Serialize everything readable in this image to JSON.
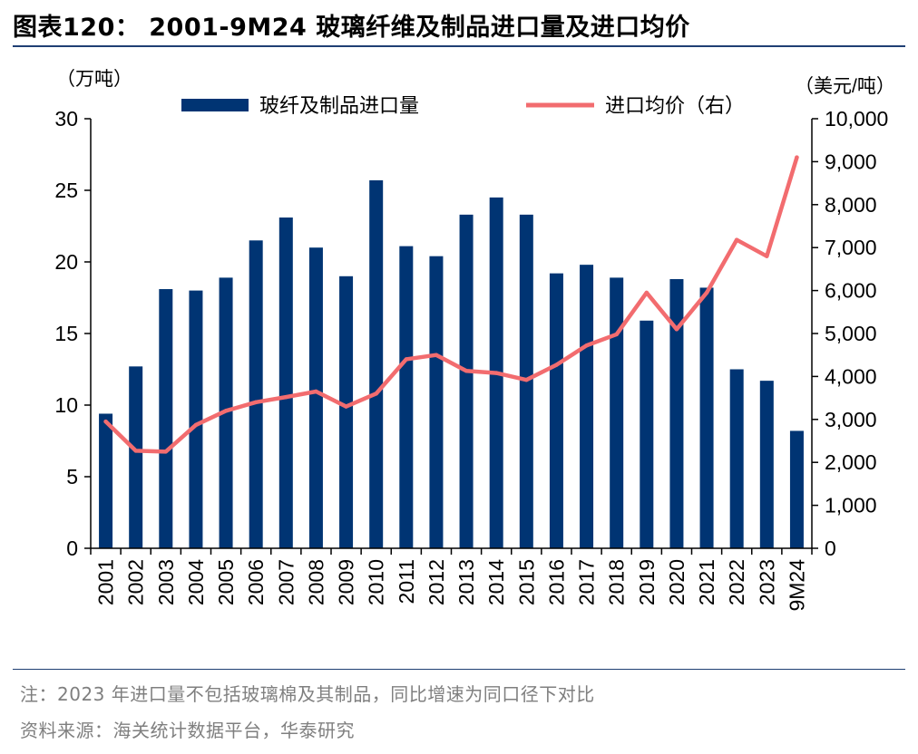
{
  "figure": {
    "title": "图表120： 2001-9M24 玻璃纤维及制品进口量及进口均价",
    "note": "注：2023 年进口量不包括玻璃棉及其制品，同比增速为同口径下对比",
    "source": "资料来源：海关统计数据平台，华泰研究"
  },
  "chart_data": {
    "type": "bar",
    "title": "2001-9M24 玻璃纤维及制品进口量及进口均价",
    "categories": [
      "2001",
      "2002",
      "2003",
      "2004",
      "2005",
      "2006",
      "2007",
      "2008",
      "2009",
      "2010",
      "2011",
      "2012",
      "2013",
      "2014",
      "2015",
      "2016",
      "2017",
      "2018",
      "2019",
      "2020",
      "2021",
      "2022",
      "2023",
      "9M24"
    ],
    "left_axis": {
      "unit_label": "（万吨）",
      "ylim": [
        0,
        30
      ],
      "ticks": [
        0,
        5,
        10,
        15,
        20,
        25,
        30
      ],
      "tick_labels": [
        "0",
        "5",
        "10",
        "15",
        "20",
        "25",
        "30"
      ]
    },
    "right_axis": {
      "unit_label": "（美元/吨）",
      "ylim": [
        0,
        10000
      ],
      "ticks": [
        0,
        1000,
        2000,
        3000,
        4000,
        5000,
        6000,
        7000,
        8000,
        9000,
        10000
      ],
      "tick_labels": [
        "0",
        "1,000",
        "2,000",
        "3,000",
        "4,000",
        "5,000",
        "6,000",
        "7,000",
        "8,000",
        "9,000",
        "10,000"
      ]
    },
    "series": [
      {
        "name": "玻纤及制品进口量",
        "type": "bar",
        "axis": "left",
        "color": "#003473",
        "values": [
          9.4,
          12.7,
          18.1,
          18.0,
          18.9,
          21.5,
          23.1,
          21.0,
          19.0,
          25.7,
          21.1,
          20.4,
          23.3,
          24.5,
          23.3,
          19.2,
          19.8,
          18.9,
          15.9,
          18.8,
          18.2,
          12.5,
          11.7,
          8.2
        ]
      },
      {
        "name": "进口均价（右）",
        "type": "line",
        "axis": "right",
        "color": "#f26c6f",
        "values": [
          2950,
          2270,
          2250,
          2870,
          3200,
          3400,
          3520,
          3650,
          3300,
          3600,
          4400,
          4500,
          4130,
          4080,
          3920,
          4270,
          4720,
          4980,
          5950,
          5100,
          5950,
          7180,
          6800,
          9100
        ]
      }
    ],
    "legend_position": "top"
  }
}
